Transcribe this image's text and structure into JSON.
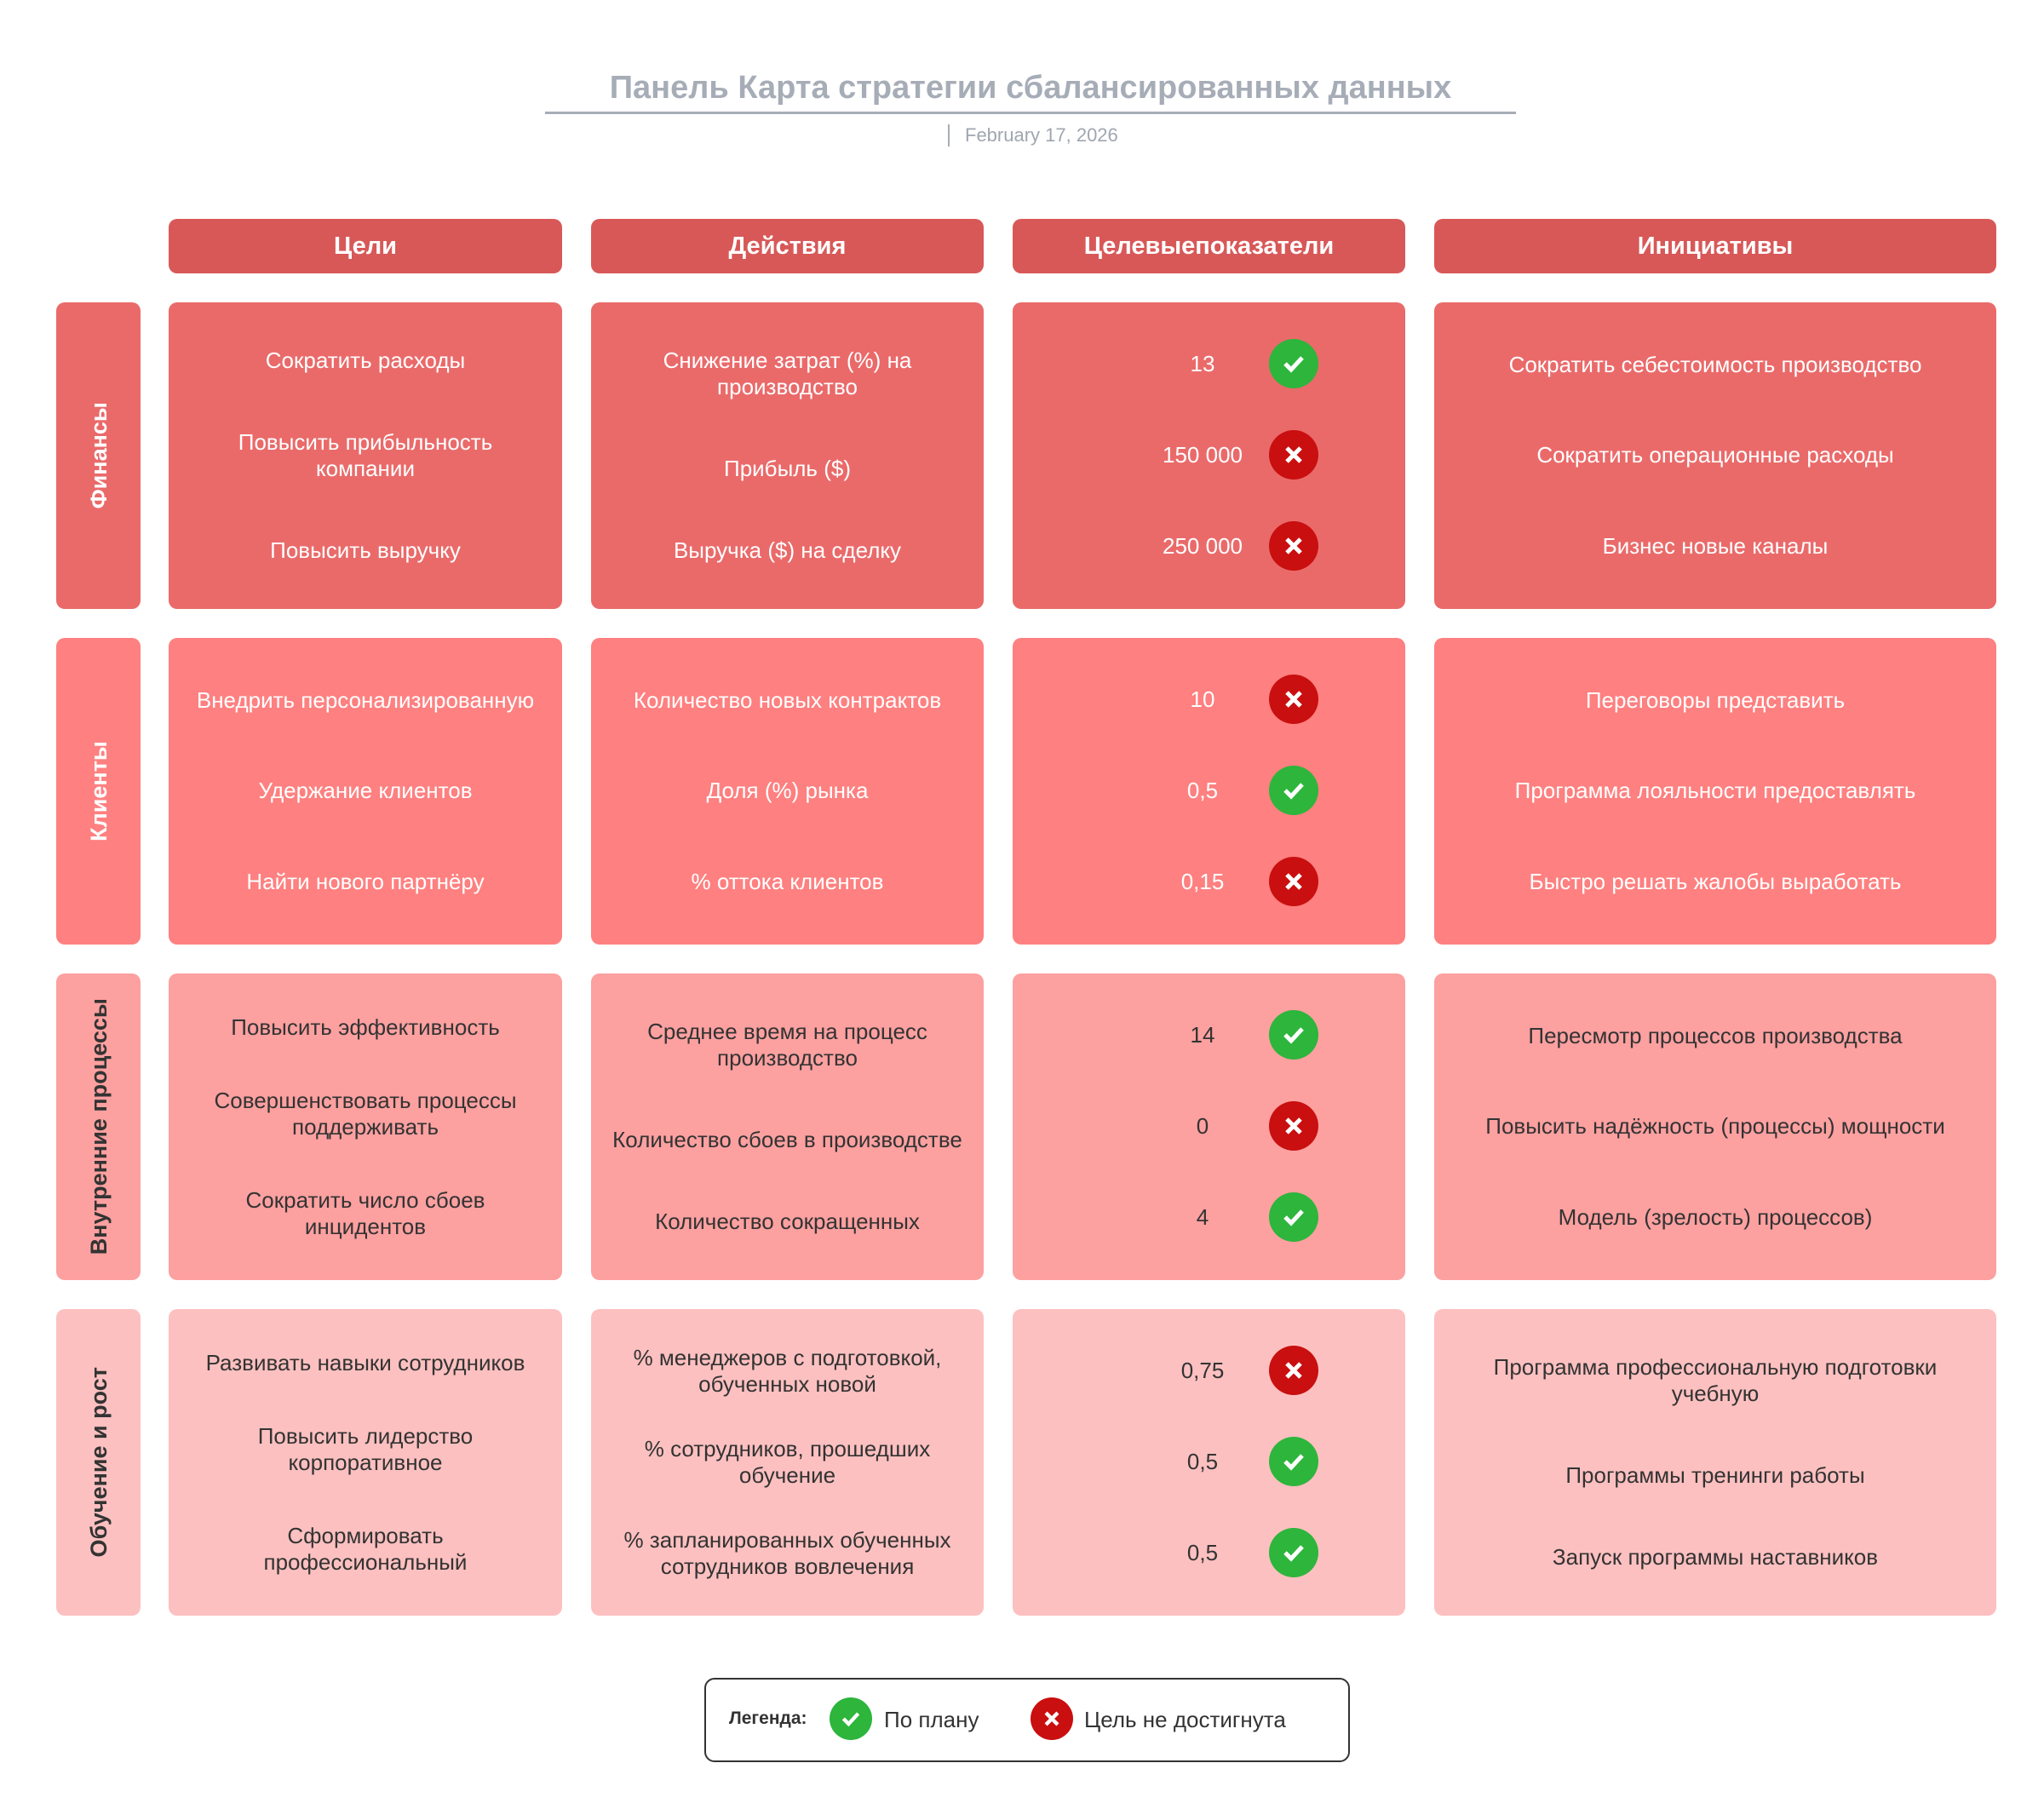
{
  "header": {
    "title_lines": [
      "Панель",
      "Карта стратегии",
      "сбалансированных данных"
    ],
    "date": "February 17, 2026"
  },
  "columns": [
    {
      "lines": [
        "Цели"
      ]
    },
    {
      "lines": [
        "Действия"
      ]
    },
    {
      "lines": [
        "Целевые",
        "показатели"
      ]
    },
    {
      "lines": [
        "Инициативы"
      ]
    }
  ],
  "colors": {
    "header": "#d85858",
    "rows": [
      "#ea6a6a",
      "#fe8080",
      "#fda0a0",
      "#fdc0c0"
    ],
    "on_track": "#2db53c",
    "missed": "#c90f0f"
  },
  "rows": [
    {
      "label_lines": [
        "Финансы"
      ],
      "goals": [
        [
          "Сократить",
          "расходы"
        ],
        [
          "Повысить",
          "прибыльность",
          "компании"
        ],
        [
          "Повысить",
          "выручку"
        ]
      ],
      "actions": [
        [
          "Снижение",
          "затрат (%)",
          "на производство"
        ],
        [
          "Прибыль",
          "($)"
        ],
        [
          "Выручка",
          "($) на",
          "сделку"
        ]
      ],
      "metrics": [
        {
          "value": "13",
          "status": "ok"
        },
        {
          "value": "150 000",
          "status": "fail"
        },
        {
          "value": "250 000",
          "status": "fail"
        }
      ],
      "initiatives": [
        [
          "Сократить",
          "себестоимость",
          "производство"
        ],
        [
          "Сократить",
          "операционные",
          "расходы"
        ],
        [
          "Бизнес",
          "новые",
          "каналы"
        ]
      ]
    },
    {
      "label_lines": [
        "Клиенты"
      ],
      "goals": [
        [
          "Внедрить",
          "персонализированную"
        ],
        [
          "Удержание",
          "клиентов"
        ],
        [
          "Найти",
          "нового",
          "партнёру"
        ]
      ],
      "actions": [
        [
          "Количество",
          "новых",
          "контрактов"
        ],
        [
          "Доля",
          "(%)",
          "рынка"
        ],
        [
          "% оттока",
          "клиентов"
        ]
      ],
      "metrics": [
        {
          "value": "10",
          "status": "fail"
        },
        {
          "value": "0,5",
          "status": "ok"
        },
        {
          "value": "0,15",
          "status": "fail"
        }
      ],
      "initiatives": [
        [
          "Переговоры",
          "представить"
        ],
        [
          "Программа",
          "лояльности",
          "предоставлять"
        ],
        [
          "Быстро",
          "решать",
          "жалобы",
          "выработать"
        ]
      ]
    },
    {
      "label_lines": [
        "Внутренние",
        "процессы"
      ],
      "goals": [
        [
          "Повысить",
          "эффективность"
        ],
        [
          "Совершенствовать",
          "процессы",
          "поддерживать"
        ],
        [
          "Сократить",
          "число",
          "сбоев",
          "инцидентов"
        ]
      ],
      "actions": [
        [
          "Среднее",
          "время",
          "на процесс",
          "производство"
        ],
        [
          "Количество",
          "сбоев",
          "в производстве"
        ],
        [
          "Количество",
          "сокращенных"
        ]
      ],
      "metrics": [
        {
          "value": "14",
          "status": "ok"
        },
        {
          "value": "0",
          "status": "fail"
        },
        {
          "value": "4",
          "status": "ok"
        }
      ],
      "initiatives": [
        [
          "Пересмотр",
          "процессов",
          "производства"
        ],
        [
          "Повысить",
          "надёжность",
          "(процессы)",
          "мощности"
        ],
        [
          "Модель",
          "(зрелость)",
          "процессов)"
        ]
      ]
    },
    {
      "label_lines": [
        "Обучение",
        "и рост"
      ],
      "goals": [
        [
          "Развивать",
          "навыки",
          "сотрудников"
        ],
        [
          "Повысить",
          "лидерство",
          "корпоративное"
        ],
        [
          "Сформировать",
          "профессиональный"
        ]
      ],
      "actions": [
        [
          "% менеджеров",
          "с подготовкой,",
          "обученных новой"
        ],
        [
          "% сотрудников,",
          "прошедших",
          "обучение"
        ],
        [
          "% запланированных",
          "обученных",
          "сотрудников",
          "вовлечения"
        ]
      ],
      "metrics": [
        {
          "value": "0,75",
          "status": "fail"
        },
        {
          "value": "0,5",
          "status": "ok"
        },
        {
          "value": "0,5",
          "status": "ok"
        }
      ],
      "initiatives": [
        [
          "Программа",
          "профессиональную",
          "подготовки",
          "учебную"
        ],
        [
          "Программы",
          "тренинги",
          "работы"
        ],
        [
          "Запуск",
          "программы",
          "наставников"
        ]
      ]
    }
  ],
  "legend": {
    "label": "Легенда:",
    "ok_lines": [
      "По",
      "плану"
    ],
    "fail_lines": [
      "Цель",
      "не",
      "достигнута"
    ],
    "ok_icon": "check-circle-icon",
    "fail_icon": "x-circle-icon"
  }
}
